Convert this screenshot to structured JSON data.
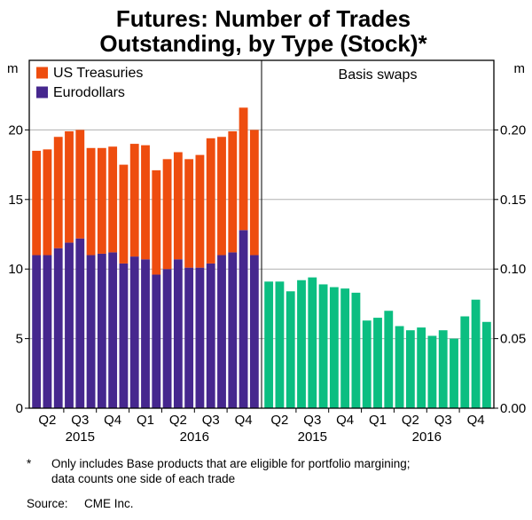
{
  "title": {
    "line1": "Futures: Number of Trades",
    "line2": "Outstanding, by Type (Stock)*"
  },
  "chart_data": {
    "type": "bar",
    "title": "Futures: Number of Trades Outstanding, by Type (Stock)*",
    "grid": true,
    "x": {
      "quarters": [
        "Q2",
        "Q3",
        "Q4",
        "Q1",
        "Q2",
        "Q3",
        "Q4"
      ],
      "bars_per_quarter": 3,
      "years": [
        {
          "label": "2015",
          "quarter_span": [
            0,
            3
          ]
        },
        {
          "label": "2016",
          "quarter_span": [
            3,
            7
          ]
        }
      ]
    },
    "panels": [
      {
        "name": "left-panel",
        "unit": "m",
        "stacked": true,
        "ylim": [
          0,
          25
        ],
        "yticks": [
          0,
          5,
          10,
          15,
          20
        ],
        "ytick_labels": [
          "0",
          "5",
          "10",
          "15",
          "20"
        ],
        "axis_side": "left",
        "legend": [
          {
            "label": "US Treasuries",
            "color": "#EE4D0F"
          },
          {
            "label": "Eurodollars",
            "color": "#46278E"
          }
        ],
        "series": [
          {
            "name": "Eurodollars",
            "color": "#46278E",
            "values": [
              11.0,
              11.0,
              11.5,
              11.9,
              12.2,
              11.0,
              11.1,
              11.2,
              10.4,
              10.9,
              10.7,
              9.6,
              10.0,
              10.7,
              10.1,
              10.1,
              10.4,
              11.0,
              11.2,
              12.8,
              11.0
            ]
          },
          {
            "name": "US Treasuries",
            "color": "#EE4D0F",
            "values": [
              7.5,
              7.6,
              8.0,
              8.0,
              7.8,
              7.7,
              7.6,
              7.6,
              7.1,
              8.1,
              8.2,
              7.5,
              7.9,
              7.7,
              7.8,
              8.1,
              9.0,
              8.5,
              8.7,
              8.8,
              9.0
            ]
          }
        ]
      },
      {
        "name": "right-panel",
        "title": "Basis swaps",
        "unit": "m",
        "stacked": false,
        "ylim": [
          0,
          0.25
        ],
        "yticks": [
          0,
          0.05,
          0.1,
          0.15,
          0.2
        ],
        "ytick_labels": [
          "0.00",
          "0.05",
          "0.10",
          "0.15",
          "0.20"
        ],
        "axis_side": "right",
        "series": [
          {
            "name": "Basis swaps",
            "color": "#0BBE81",
            "values": [
              0.091,
              0.091,
              0.084,
              0.092,
              0.094,
              0.089,
              0.087,
              0.086,
              0.083,
              0.063,
              0.065,
              0.07,
              0.059,
              0.056,
              0.058,
              0.052,
              0.056,
              0.05,
              0.066,
              0.078,
              0.062
            ]
          }
        ]
      }
    ]
  },
  "footnote": {
    "marker": "*",
    "line1": "Only includes Base products that are eligible for portfolio margining;",
    "line2": "data counts one side of each trade"
  },
  "source": {
    "label": "Source:",
    "value": "CME Inc."
  }
}
